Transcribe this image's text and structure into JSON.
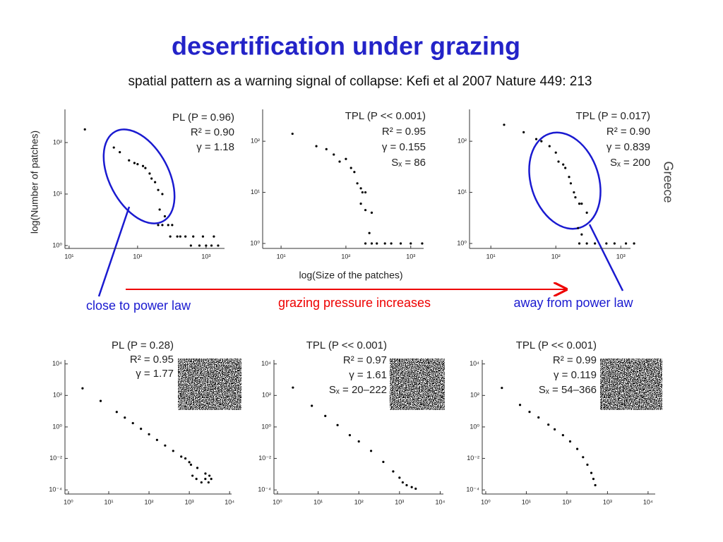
{
  "title": "desertification under grazing",
  "subtitle": "spatial pattern  as a warning signal of collapse: Kefi et al 2007 Nature 449: 213",
  "axis_labels": {
    "y": "log(Number of patches)",
    "x": "log(Size of the patches)"
  },
  "side_label": "Greece",
  "annotations": {
    "left": "close to power law",
    "middle": "grazing pressure increases",
    "right": "away from power law"
  },
  "chart_data": [
    {
      "type": "scatter",
      "log_x": true,
      "log_y": true,
      "color": "#000000",
      "stats": [
        "PL (P = 0.96)",
        "R² = 0.90",
        "γ = 1.18"
      ],
      "xlim": [
        8.7,
        1860
      ],
      "ylim": [
        0.88,
        440
      ],
      "xticks": [
        {
          "value": 10,
          "label": "10¹"
        },
        {
          "value": 100,
          "label": "10²"
        },
        {
          "value": 1000,
          "label": "10³"
        }
      ],
      "yticks": [
        {
          "value": 1,
          "label": "10⁰"
        },
        {
          "value": 10,
          "label": "10¹"
        },
        {
          "value": 100,
          "label": "10²"
        }
      ],
      "x": [
        17,
        45,
        55,
        75,
        90,
        100,
        120,
        130,
        150,
        160,
        180,
        200,
        230,
        210,
        250,
        200,
        230,
        280,
        320,
        380,
        300,
        420,
        500,
        650,
        900,
        1300,
        600,
        800,
        1000,
        1200,
        1500
      ],
      "y": [
        180,
        80,
        65,
        45,
        40,
        38,
        35,
        32,
        25,
        20,
        17,
        12,
        10,
        5,
        3.7,
        2.5,
        2.5,
        2.5,
        2.5,
        1.5,
        1.5,
        1.5,
        1.5,
        1.5,
        1.5,
        1.5,
        1,
        1,
        1,
        1,
        1
      ]
    },
    {
      "type": "scatter",
      "log_x": true,
      "log_y": true,
      "color": "#000000",
      "stats": [
        "TPL (P << 0.001)",
        "R² = 0.95",
        "γ = 0.155",
        "Sₓ = 86"
      ],
      "xlim": [
        5.2,
        1580
      ],
      "ylim": [
        0.8,
        420
      ],
      "xticks": [
        {
          "value": 10,
          "label": "10¹"
        },
        {
          "value": 100,
          "label": "10²"
        },
        {
          "value": 1000,
          "label": "10³"
        }
      ],
      "yticks": [
        {
          "value": 1,
          "label": "10⁰"
        },
        {
          "value": 10,
          "label": "10¹"
        },
        {
          "value": 100,
          "label": "10²"
        }
      ],
      "x": [
        15,
        35,
        50,
        65,
        80,
        100,
        120,
        135,
        150,
        170,
        180,
        200,
        170,
        200,
        250,
        230,
        200,
        250,
        300,
        400,
        500,
        700,
        1000,
        1500
      ],
      "y": [
        140,
        80,
        70,
        55,
        40,
        45,
        30,
        25,
        15,
        12,
        10,
        10,
        6,
        4.5,
        4,
        1.6,
        1,
        1,
        1,
        1,
        1,
        1,
        1,
        1
      ]
    },
    {
      "type": "scatter",
      "log_x": true,
      "log_y": true,
      "color": "#000000",
      "stats": [
        "TPL (P = 0.017)",
        "R² = 0.90",
        "γ = 0.839",
        "Sₓ = 200"
      ],
      "xlim": [
        4.7,
        1410
      ],
      "ylim": [
        0.8,
        420
      ],
      "xticks": [
        {
          "value": 10,
          "label": "10¹"
        },
        {
          "value": 100,
          "label": "10²"
        },
        {
          "value": 1000,
          "label": "10³"
        }
      ],
      "yticks": [
        {
          "value": 1,
          "label": "10⁰"
        },
        {
          "value": 10,
          "label": "10¹"
        },
        {
          "value": 100,
          "label": "10²"
        }
      ],
      "x": [
        16,
        32,
        50,
        60,
        80,
        100,
        110,
        130,
        140,
        160,
        170,
        190,
        200,
        230,
        250,
        300,
        220,
        250,
        230,
        300,
        400,
        600,
        800,
        1200,
        1600
      ],
      "y": [
        210,
        150,
        110,
        100,
        80,
        60,
        40,
        35,
        30,
        20,
        15,
        10,
        8,
        6,
        6,
        4,
        2,
        1.5,
        1,
        1,
        1,
        1,
        1,
        1,
        1
      ]
    },
    {
      "type": "scatter",
      "log_x": true,
      "log_y": true,
      "color": "#000000",
      "stats": [
        "PL (P = 0.28)",
        "R² = 0.95",
        "γ = 1.77"
      ],
      "xlim": [
        0.82,
        11200
      ],
      "ylim": [
        5.5e-05,
        18000
      ],
      "xticks": [
        {
          "value": 1,
          "label": "10⁰"
        },
        {
          "value": 10,
          "label": "10¹"
        },
        {
          "value": 100,
          "label": "10²"
        },
        {
          "value": 1000,
          "label": "10³"
        },
        {
          "value": 10000,
          "label": "10⁴"
        }
      ],
      "yticks": [
        {
          "value": 0.0001,
          "label": "10⁻⁴"
        },
        {
          "value": 0.01,
          "label": "10⁻²"
        },
        {
          "value": 1,
          "label": "10⁰"
        },
        {
          "value": 100,
          "label": "10²"
        },
        {
          "value": 10000,
          "label": "10⁴"
        }
      ],
      "x": [
        2.24,
        6.3,
        15.8,
        25.1,
        39.8,
        63.1,
        100,
        158,
        251,
        398,
        631,
        1000,
        1585,
        2512,
        3162,
        1500,
        2000,
        3000,
        2500,
        1200,
        3500,
        800,
        1100
      ],
      "y": [
        282,
        44.7,
        8.9,
        3.9,
        1.74,
        0.76,
        0.34,
        0.15,
        0.066,
        0.03,
        0.013,
        0.0058,
        0.0025,
        0.0011,
        0.0008,
        0.0005,
        0.0003,
        0.0003,
        0.0005,
        0.0008,
        0.0005,
        0.01,
        0.004
      ]
    },
    {
      "type": "scatter",
      "log_x": true,
      "log_y": true,
      "color": "#000000",
      "stats": [
        "TPL (P << 0.001)",
        "R² = 0.97",
        "γ = 1.61",
        "Sₓ = 20–222"
      ],
      "xlim": [
        0.82,
        12000
      ],
      "ylim": [
        5.5e-05,
        18000
      ],
      "xticks": [
        {
          "value": 1,
          "label": "10⁰"
        },
        {
          "value": 10,
          "label": "10¹"
        },
        {
          "value": 100,
          "label": "10²"
        },
        {
          "value": 1000,
          "label": "10³"
        },
        {
          "value": 10000,
          "label": "10⁴"
        }
      ],
      "yticks": [
        {
          "value": 0.0001,
          "label": "10⁻⁴"
        },
        {
          "value": 0.01,
          "label": "10⁻²"
        },
        {
          "value": 1,
          "label": "10⁰"
        },
        {
          "value": 100,
          "label": "10²"
        },
        {
          "value": 10000,
          "label": "10⁴"
        }
      ],
      "x": [
        2.4,
        7,
        15,
        30,
        60,
        100,
        200,
        400,
        700,
        1000,
        1200,
        1500,
        2000,
        2500
      ],
      "y": [
        316,
        22,
        5,
        1.3,
        0.3,
        0.12,
        0.03,
        0.006,
        0.0015,
        0.0006,
        0.0003,
        0.0002,
        0.00015,
        0.00012
      ]
    },
    {
      "type": "scatter",
      "log_x": true,
      "log_y": true,
      "color": "#000000",
      "stats": [
        "TPL (P << 0.001)",
        "R² = 0.99",
        "γ = 0.119",
        "Sₓ = 54–366"
      ],
      "xlim": [
        0.82,
        15000
      ],
      "ylim": [
        5.5e-05,
        18000
      ],
      "xticks": [
        {
          "value": 1,
          "label": "10⁰"
        },
        {
          "value": 10,
          "label": "10¹"
        },
        {
          "value": 100,
          "label": "10²"
        },
        {
          "value": 1000,
          "label": "10³"
        },
        {
          "value": 10000,
          "label": "10⁴"
        }
      ],
      "yticks": [
        {
          "value": 0.0001,
          "label": "10⁻⁴"
        },
        {
          "value": 0.01,
          "label": "10⁻²"
        },
        {
          "value": 1,
          "label": "10⁰"
        },
        {
          "value": 100,
          "label": "10²"
        },
        {
          "value": 10000,
          "label": "10⁴"
        }
      ],
      "x": [
        2.5,
        7,
        12,
        20,
        35,
        50,
        80,
        120,
        180,
        250,
        320,
        400,
        450,
        500
      ],
      "y": [
        300,
        25,
        9,
        4,
        1.4,
        0.7,
        0.3,
        0.12,
        0.04,
        0.012,
        0.004,
        0.0012,
        0.0005,
        0.0002
      ]
    }
  ]
}
